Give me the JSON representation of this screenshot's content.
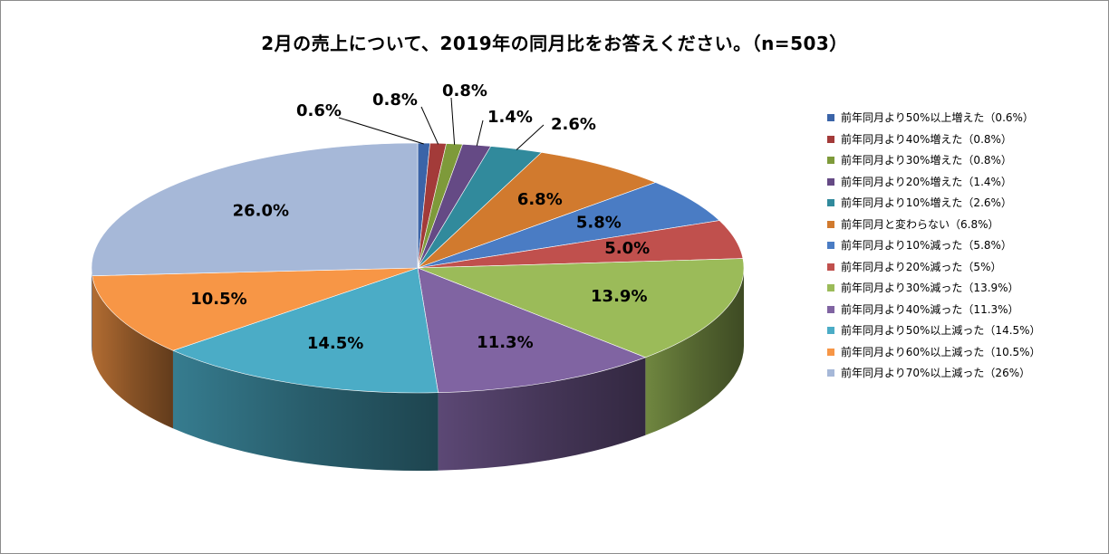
{
  "chart_data": {
    "type": "pie",
    "title": "2月の売上について、2019年の同月比をお答えください。（n=503）",
    "labels": [
      "前年同月より50%以上増えた（0.6%）",
      "前年同月より40%増えた（0.8%）",
      "前年同月より30%増えた（0.8%）",
      "前年同月より20%増えた（1.4%）",
      "前年同月より10%増えた（2.6%）",
      "前年同月と変わらない（6.8%）",
      "前年同月より10%減った（5.8%）",
      "前年同月より20%減った（5%）",
      "前年同月より30%減った（13.9%）",
      "前年同月より40%減った（11.3%）",
      "前年同月より50%以上減った（14.5%）",
      "前年同月より60%以上減った（10.5%）",
      "前年同月より70%以上減った（26%）"
    ],
    "values": [
      0.6,
      0.8,
      0.8,
      1.4,
      2.6,
      6.8,
      5.8,
      5.0,
      13.9,
      11.3,
      14.5,
      10.5,
      26.0
    ],
    "data_labels": [
      "0.6%",
      "0.8%",
      "0.8%",
      "1.4%",
      "2.6%",
      "6.8%",
      "5.8%",
      "5.0%",
      "13.9%",
      "11.3%",
      "14.5%",
      "10.5%",
      "26.0%"
    ],
    "colors": [
      "#3B64A8",
      "#A33B39",
      "#7E9A3A",
      "#654A85",
      "#318A9C",
      "#D17A2E",
      "#4A7CC4",
      "#C0504D",
      "#9BBB59",
      "#8064A2",
      "#4BACC6",
      "#F79646",
      "#A6B8D8"
    ],
    "legend_position": "right",
    "style": "3d-pie"
  }
}
